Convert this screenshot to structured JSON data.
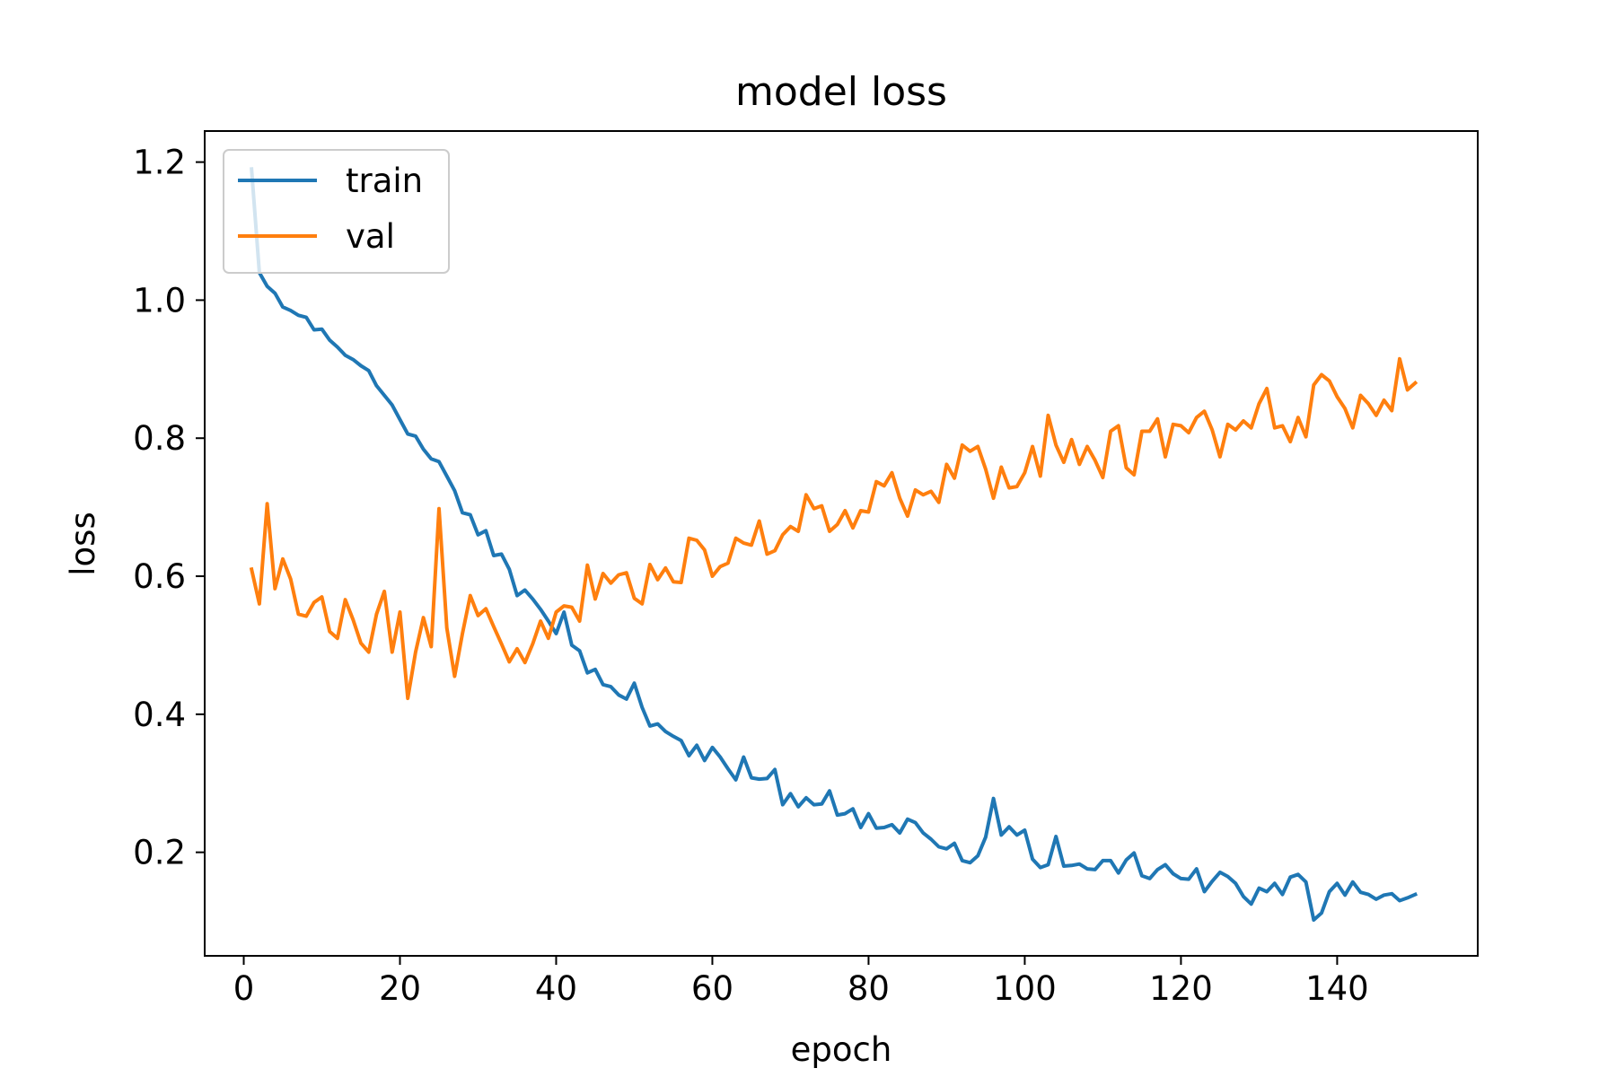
{
  "chart_data": {
    "type": "line",
    "title": "model loss",
    "xlabel": "epoch",
    "ylabel": "loss",
    "xlim": [
      -5,
      158
    ],
    "ylim": [
      0.05,
      1.245
    ],
    "xticks": [
      0,
      20,
      40,
      60,
      80,
      100,
      120,
      140
    ],
    "yticks": [
      0.2,
      0.4,
      0.6,
      0.8,
      1.0,
      1.2
    ],
    "xtick_labels": [
      "0",
      "20",
      "40",
      "60",
      "80",
      "100",
      "120",
      "140"
    ],
    "ytick_labels": [
      "0.2",
      "0.4",
      "0.6",
      "0.8",
      "1.0",
      "1.2"
    ],
    "grid": false,
    "legend": "upper-left",
    "series": [
      {
        "name": "train",
        "color": "#1f77b4",
        "x": [
          1,
          2,
          3,
          4,
          5,
          6,
          7,
          8,
          9,
          10,
          11,
          12,
          13,
          14,
          15,
          16,
          17,
          18,
          19,
          20,
          21,
          22,
          23,
          24,
          25,
          26,
          27,
          28,
          29,
          30,
          31,
          32,
          33,
          34,
          35,
          36,
          37,
          38,
          39,
          40,
          41,
          42,
          43,
          44,
          45,
          46,
          47,
          48,
          49,
          50,
          51,
          52,
          53,
          54,
          55,
          56,
          57,
          58,
          59,
          60,
          61,
          62,
          63,
          64,
          65,
          66,
          67,
          68,
          69,
          70,
          71,
          72,
          73,
          74,
          75,
          76,
          77,
          78,
          79,
          80,
          81,
          82,
          83,
          84,
          85,
          86,
          87,
          88,
          89,
          90,
          91,
          92,
          93,
          94,
          95,
          96,
          97,
          98,
          99,
          100,
          101,
          102,
          103,
          104,
          105,
          106,
          107,
          108,
          109,
          110,
          111,
          112,
          113,
          114,
          115,
          116,
          117,
          118,
          119,
          120,
          121,
          122,
          123,
          124,
          125,
          126,
          127,
          128,
          129,
          130,
          131,
          132,
          133,
          134,
          135,
          136,
          137,
          138,
          139,
          140,
          141,
          142,
          143,
          144,
          145,
          146,
          147,
          148,
          149,
          150
        ],
        "y": [
          1.19,
          1.04,
          1.02,
          1.01,
          0.99,
          0.985,
          0.978,
          0.975,
          0.957,
          0.958,
          0.942,
          0.932,
          0.92,
          0.914,
          0.905,
          0.898,
          0.876,
          0.862,
          0.848,
          0.827,
          0.806,
          0.803,
          0.784,
          0.77,
          0.766,
          0.745,
          0.724,
          0.692,
          0.689,
          0.66,
          0.666,
          0.63,
          0.632,
          0.61,
          0.572,
          0.58,
          0.567,
          0.552,
          0.535,
          0.517,
          0.548,
          0.5,
          0.492,
          0.46,
          0.465,
          0.443,
          0.44,
          0.428,
          0.422,
          0.445,
          0.41,
          0.383,
          0.386,
          0.375,
          0.368,
          0.362,
          0.34,
          0.355,
          0.333,
          0.352,
          0.338,
          0.321,
          0.305,
          0.338,
          0.308,
          0.306,
          0.307,
          0.32,
          0.269,
          0.285,
          0.266,
          0.279,
          0.269,
          0.27,
          0.289,
          0.254,
          0.256,
          0.263,
          0.236,
          0.256,
          0.235,
          0.236,
          0.24,
          0.228,
          0.248,
          0.243,
          0.228,
          0.219,
          0.208,
          0.205,
          0.213,
          0.188,
          0.185,
          0.195,
          0.222,
          0.278,
          0.225,
          0.237,
          0.225,
          0.232,
          0.19,
          0.178,
          0.182,
          0.223,
          0.18,
          0.181,
          0.183,
          0.176,
          0.175,
          0.188,
          0.188,
          0.17,
          0.189,
          0.199,
          0.166,
          0.162,
          0.175,
          0.182,
          0.169,
          0.162,
          0.161,
          0.176,
          0.143,
          0.158,
          0.171,
          0.165,
          0.155,
          0.136,
          0.125,
          0.148,
          0.143,
          0.155,
          0.139,
          0.164,
          0.168,
          0.157,
          0.102,
          0.112,
          0.143,
          0.155,
          0.138,
          0.157,
          0.142,
          0.139,
          0.132,
          0.138,
          0.14,
          0.13,
          0.134,
          0.139
        ]
      },
      {
        "name": "val",
        "color": "#ff7f0e",
        "x": [
          1,
          2,
          3,
          4,
          5,
          6,
          7,
          8,
          9,
          10,
          11,
          12,
          13,
          14,
          15,
          16,
          17,
          18,
          19,
          20,
          21,
          22,
          23,
          24,
          25,
          26,
          27,
          28,
          29,
          30,
          31,
          32,
          33,
          34,
          35,
          36,
          37,
          38,
          39,
          40,
          41,
          42,
          43,
          44,
          45,
          46,
          47,
          48,
          49,
          50,
          51,
          52,
          53,
          54,
          55,
          56,
          57,
          58,
          59,
          60,
          61,
          62,
          63,
          64,
          65,
          66,
          67,
          68,
          69,
          70,
          71,
          72,
          73,
          74,
          75,
          76,
          77,
          78,
          79,
          80,
          81,
          82,
          83,
          84,
          85,
          86,
          87,
          88,
          89,
          90,
          91,
          92,
          93,
          94,
          95,
          96,
          97,
          98,
          99,
          100,
          101,
          102,
          103,
          104,
          105,
          106,
          107,
          108,
          109,
          110,
          111,
          112,
          113,
          114,
          115,
          116,
          117,
          118,
          119,
          120,
          121,
          122,
          123,
          124,
          125,
          126,
          127,
          128,
          129,
          130,
          131,
          132,
          133,
          134,
          135,
          136,
          137,
          138,
          139,
          140,
          141,
          142,
          143,
          144,
          145,
          146,
          147,
          148,
          149,
          150
        ],
        "y": [
          0.61,
          0.56,
          0.705,
          0.582,
          0.625,
          0.596,
          0.545,
          0.542,
          0.562,
          0.57,
          0.52,
          0.51,
          0.566,
          0.537,
          0.503,
          0.49,
          0.545,
          0.578,
          0.49,
          0.548,
          0.423,
          0.49,
          0.54,
          0.498,
          0.698,
          0.525,
          0.455,
          0.517,
          0.572,
          0.543,
          0.553,
          0.527,
          0.502,
          0.476,
          0.495,
          0.475,
          0.502,
          0.535,
          0.51,
          0.548,
          0.557,
          0.555,
          0.535,
          0.616,
          0.567,
          0.604,
          0.59,
          0.602,
          0.605,
          0.568,
          0.56,
          0.617,
          0.595,
          0.612,
          0.592,
          0.591,
          0.655,
          0.652,
          0.638,
          0.6,
          0.614,
          0.619,
          0.655,
          0.648,
          0.645,
          0.68,
          0.632,
          0.637,
          0.66,
          0.672,
          0.665,
          0.718,
          0.698,
          0.702,
          0.665,
          0.675,
          0.695,
          0.67,
          0.695,
          0.693,
          0.737,
          0.731,
          0.75,
          0.713,
          0.687,
          0.725,
          0.718,
          0.723,
          0.707,
          0.762,
          0.742,
          0.79,
          0.781,
          0.788,
          0.755,
          0.713,
          0.758,
          0.728,
          0.73,
          0.75,
          0.788,
          0.745,
          0.833,
          0.79,
          0.765,
          0.798,
          0.762,
          0.788,
          0.768,
          0.743,
          0.81,
          0.818,
          0.757,
          0.747,
          0.81,
          0.81,
          0.828,
          0.773,
          0.82,
          0.818,
          0.808,
          0.83,
          0.839,
          0.812,
          0.773,
          0.82,
          0.812,
          0.825,
          0.815,
          0.85,
          0.872,
          0.815,
          0.818,
          0.795,
          0.83,
          0.802,
          0.877,
          0.892,
          0.883,
          0.86,
          0.843,
          0.815,
          0.862,
          0.85,
          0.833,
          0.855,
          0.84,
          0.915,
          0.87,
          0.88
        ]
      }
    ]
  }
}
